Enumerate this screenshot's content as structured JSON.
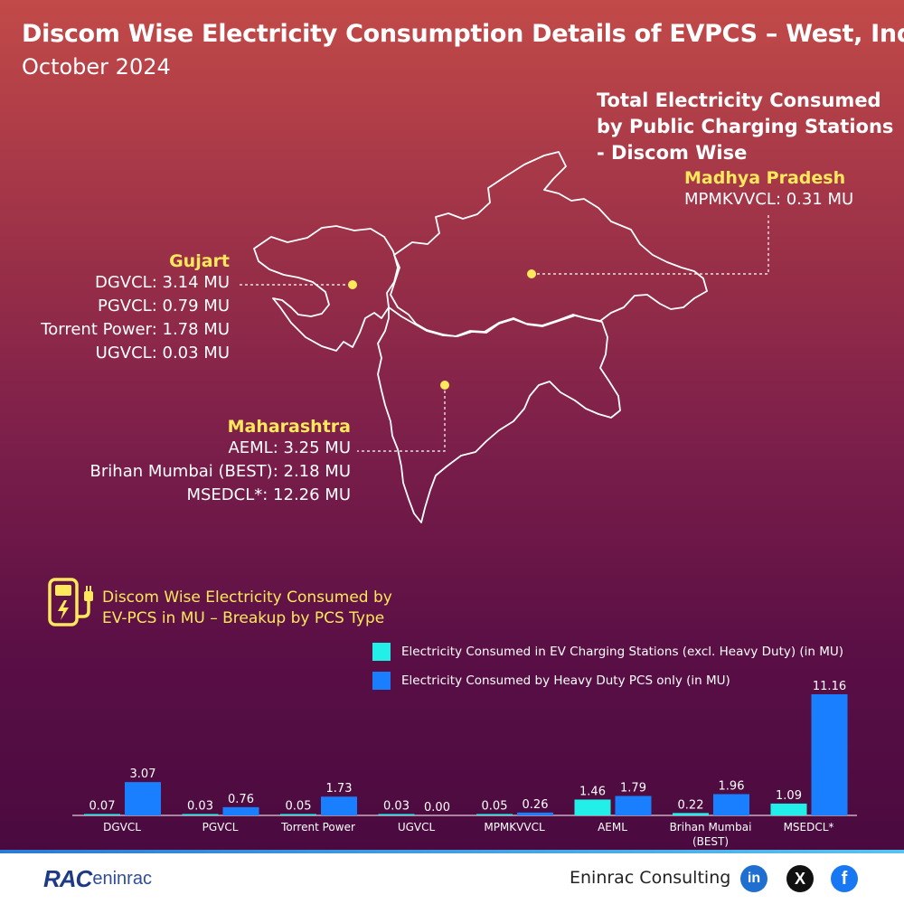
{
  "header": {
    "title": "Discom Wise Electricity Consumption Details of EVPCS – West, India",
    "subtitle": "October 2024"
  },
  "map": {
    "heading": [
      "Total Electricity Consumed",
      "by Public Charging Stations",
      "- Discom Wise"
    ],
    "marker_color": "#ffe85c",
    "regions": {
      "gujarat": {
        "name": "Gujart",
        "lines": [
          "DGVCL: 3.14 MU",
          "PGVCL: 0.79 MU",
          "Torrent Power: 1.78 MU",
          "UGVCL: 0.03 MU"
        ]
      },
      "madhya_pradesh": {
        "name": "Madhya Pradesh",
        "lines": [
          "MPMKVVCL: 0.31 MU"
        ]
      },
      "maharashtra": {
        "name": "Maharashtra",
        "lines": [
          "AEML: 3.25 MU",
          "Brihan Mumbai (BEST): 2.18 MU",
          "MSEDCL*: 12.26 MU"
        ]
      }
    }
  },
  "breakup": {
    "heading": [
      "Discom Wise Electricity Consumed by",
      "EV-PCS in MU – Breakup by PCS Type"
    ],
    "icon": "ev-charger-icon"
  },
  "chart_data": {
    "type": "bar",
    "title": "Discom Wise Electricity Consumed by EV-PCS in MU – Breakup by PCS Type",
    "categories": [
      "DGVCL",
      "PGVCL",
      "Torrent Power",
      "UGVCL",
      "MPMKVVCL",
      "AEML",
      "Brihan Mumbai (BEST)",
      "MSEDCL*"
    ],
    "series": [
      {
        "name": "Electricity Consumed in EV Charging Stations (excl. Heavy Duty) (in MU)",
        "color": "#22f0e8",
        "values": [
          0.07,
          0.03,
          0.05,
          0.03,
          0.05,
          1.46,
          0.22,
          1.09
        ]
      },
      {
        "name": "Electricity Consumed by Heavy Duty PCS only (in MU)",
        "color": "#1a7fff",
        "values": [
          3.07,
          0.76,
          1.73,
          0.0,
          0.26,
          1.79,
          1.96,
          11.16
        ]
      }
    ],
    "value_labels": [
      [
        "0.07",
        "0.03",
        "0.05",
        "0.03",
        "0.05",
        "1.46",
        "0.22",
        "1.09"
      ],
      [
        "3.07",
        "0.76",
        "1.73",
        "0.00",
        "0.26",
        "1.79",
        "1.96",
        "11.16"
      ]
    ],
    "legend_position": "top-right",
    "grid": false
  },
  "footer": {
    "logo_rac": "RAC",
    "logo_brand": "eninrac",
    "company": "Eninrac Consulting",
    "social": {
      "linkedin": "in",
      "x": "X",
      "facebook": "f"
    }
  }
}
